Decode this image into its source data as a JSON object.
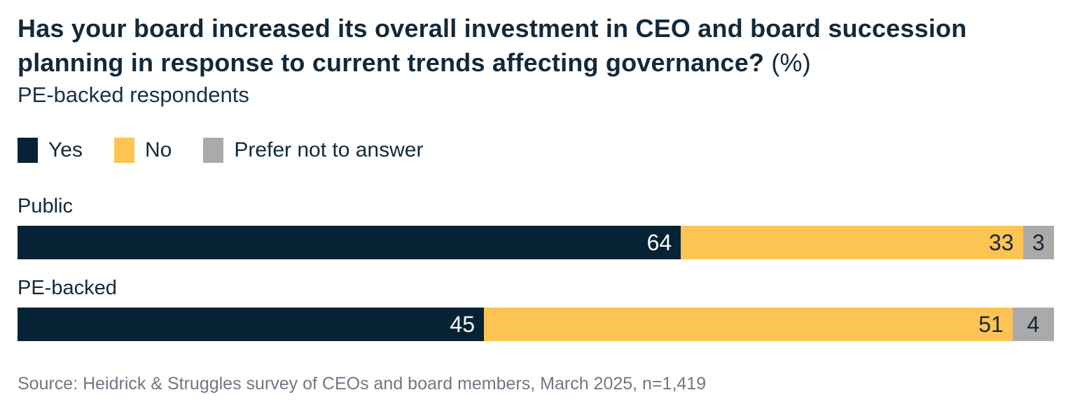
{
  "header": {
    "title_bold": "Has your board increased its overall investment in CEO and board succession planning in response to current trends affecting governance?",
    "title_suffix": " (%)",
    "subtitle": "PE-backed respondents"
  },
  "colors": {
    "navy": "#052334",
    "yellow": "#fdc453",
    "gray": "#abaaab",
    "title_text": "#13293a",
    "source_text": "#6f7885"
  },
  "legend": [
    {
      "label": "Yes",
      "color": "#052334"
    },
    {
      "label": "No",
      "color": "#fdc453"
    },
    {
      "label": "Prefer not to answer",
      "color": "#abaaab"
    }
  ],
  "chart_data": {
    "type": "bar",
    "orientation": "horizontal",
    "stacked": true,
    "unit": "%",
    "xlim": [
      0,
      100
    ],
    "grid": false,
    "legend_position": "top",
    "value_labels": "inside-end",
    "categories": [
      "Public",
      "PE-backed"
    ],
    "series": [
      {
        "name": "Yes",
        "color": "#052334",
        "label_color": "#ffffff",
        "values": [
          64,
          45
        ]
      },
      {
        "name": "No",
        "color": "#fdc453",
        "label_color": "#13293a",
        "values": [
          33,
          51
        ]
      },
      {
        "name": "Prefer not to answer",
        "color": "#abaaab",
        "label_color": "#13293a",
        "values": [
          3,
          4
        ]
      }
    ]
  },
  "source": "Source: Heidrick & Struggles survey of CEOs and board members, March 2025, n=1,419"
}
